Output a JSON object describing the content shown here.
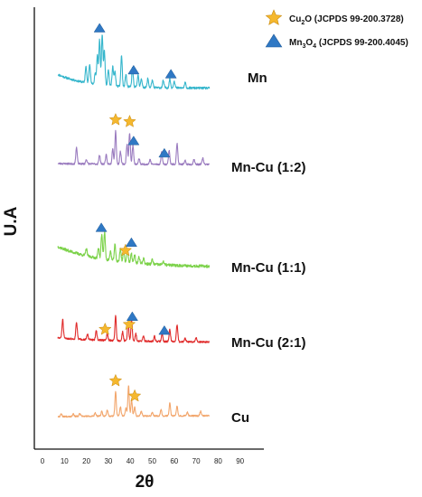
{
  "chart_data": {
    "type": "line",
    "title": "",
    "xlabel": "2θ",
    "ylabel": "U.A",
    "xlim": [
      0,
      90
    ],
    "x_ticks": [
      0,
      10,
      20,
      30,
      40,
      50,
      60,
      70,
      80,
      90
    ],
    "grid": false,
    "legend_position": "top-right",
    "legend": [
      {
        "marker": "star",
        "color": "#f5b82e",
        "formula_main": "Cu",
        "formula_sub": "2",
        "formula_end": "O",
        "ref": "(JCPDS 99-200.3728)"
      },
      {
        "marker": "triangle",
        "color": "#2f78c4",
        "formula_main": "Mn",
        "formula_sub": "3",
        "formula_end": "O",
        "formula_sub2": "4",
        "ref": "(JCPDS 99-200.4045)"
      }
    ],
    "series": [
      {
        "name": "Mn",
        "color": "#36b6cc",
        "baseline_start": 0.88,
        "baseline_end": 0.12,
        "decay": 14,
        "noise": 0.06,
        "seed": 11,
        "peaks": [
          [
            19.8,
            0.9
          ],
          [
            21.5,
            1.1
          ],
          [
            24.0,
            0.6
          ],
          [
            25.0,
            1.6
          ],
          [
            26.0,
            2.5
          ],
          [
            27.2,
            2.8
          ],
          [
            28.2,
            1.9
          ],
          [
            30.0,
            0.9
          ],
          [
            32.0,
            1.1
          ],
          [
            33.0,
            0.8
          ],
          [
            36.0,
            1.7
          ],
          [
            38.0,
            0.7
          ],
          [
            41.0,
            1.1
          ],
          [
            43.5,
            0.7
          ],
          [
            45.0,
            0.5
          ],
          [
            48.0,
            0.5
          ],
          [
            50.0,
            0.4
          ],
          [
            55.0,
            0.4
          ],
          [
            58.0,
            0.5
          ],
          [
            60.0,
            0.4
          ],
          [
            65.0,
            0.3
          ]
        ]
      },
      {
        "name": "Mn-Cu (1:2)",
        "color": "#9a7bbf",
        "baseline_start": 0.55,
        "baseline_end": 0.5,
        "decay": 30,
        "noise": 0.05,
        "seed": 23,
        "peaks": [
          [
            15.5,
            0.9
          ],
          [
            20.0,
            0.25
          ],
          [
            26.0,
            0.5
          ],
          [
            29.0,
            0.5
          ],
          [
            32.0,
            0.9
          ],
          [
            33.3,
            1.85
          ],
          [
            35.5,
            0.7
          ],
          [
            38.5,
            1.1
          ],
          [
            39.7,
            1.75
          ],
          [
            41.2,
            1.05
          ],
          [
            44.0,
            0.3
          ],
          [
            49.0,
            0.25
          ],
          [
            54.3,
            0.7
          ],
          [
            57.7,
            0.8
          ],
          [
            61.3,
            1.15
          ],
          [
            65.0,
            0.2
          ],
          [
            69.0,
            0.3
          ],
          [
            73.0,
            0.35
          ]
        ]
      },
      {
        "name": "Mn-Cu (1:1)",
        "color": "#7cd24a",
        "baseline_start": 1.35,
        "baseline_end": 0.22,
        "decay": 22,
        "noise": 0.08,
        "seed": 37,
        "peaks": [
          [
            20.0,
            0.4
          ],
          [
            25.5,
            0.6
          ],
          [
            27.0,
            1.35
          ],
          [
            28.3,
            1.5
          ],
          [
            31.0,
            0.5
          ],
          [
            33.0,
            0.9
          ],
          [
            35.5,
            0.7
          ],
          [
            37.0,
            0.6
          ],
          [
            38.7,
            0.75
          ],
          [
            40.5,
            0.5
          ],
          [
            42.0,
            0.45
          ],
          [
            44.0,
            0.35
          ],
          [
            46.0,
            0.3
          ],
          [
            50.0,
            0.25
          ],
          [
            55.0,
            0.2
          ]
        ]
      },
      {
        "name": "Mn-Cu (2:1)",
        "color": "#e02b2b",
        "baseline_start": 0.65,
        "baseline_end": 0.4,
        "decay": 30,
        "noise": 0.05,
        "seed": 51,
        "peaks": [
          [
            9.2,
            1.05
          ],
          [
            15.5,
            0.95
          ],
          [
            20.5,
            0.3
          ],
          [
            24.5,
            0.5
          ],
          [
            29.5,
            0.35
          ],
          [
            33.3,
            1.35
          ],
          [
            36.5,
            0.5
          ],
          [
            39.0,
            1.05
          ],
          [
            40.6,
            1.15
          ],
          [
            42.5,
            0.4
          ],
          [
            46.0,
            0.3
          ],
          [
            51.0,
            0.3
          ],
          [
            54.5,
            0.45
          ],
          [
            58.0,
            0.7
          ],
          [
            61.3,
            0.95
          ],
          [
            65.0,
            0.2
          ],
          [
            70.0,
            0.25
          ]
        ]
      },
      {
        "name": "Cu",
        "color": "#f2a66c",
        "baseline_start": 0.25,
        "baseline_end": 0.3,
        "decay": 30,
        "noise": 0.04,
        "seed": 67,
        "peaks": [
          [
            8.5,
            0.15
          ],
          [
            14.0,
            0.15
          ],
          [
            17.0,
            0.15
          ],
          [
            24.0,
            0.2
          ],
          [
            27.0,
            0.25
          ],
          [
            29.5,
            0.35
          ],
          [
            33.3,
            1.35
          ],
          [
            35.5,
            0.5
          ],
          [
            38.0,
            0.45
          ],
          [
            39.2,
            1.7
          ],
          [
            40.6,
            0.9
          ],
          [
            42.0,
            0.5
          ],
          [
            45.0,
            0.25
          ],
          [
            50.0,
            0.2
          ],
          [
            54.0,
            0.35
          ],
          [
            58.0,
            0.7
          ],
          [
            61.3,
            0.55
          ],
          [
            66.0,
            0.2
          ],
          [
            72.0,
            0.25
          ]
        ]
      }
    ],
    "markers": [
      {
        "series": "Mn",
        "phase": "triangle",
        "x": 26.0
      },
      {
        "series": "Mn",
        "phase": "triangle",
        "x": 41.5
      },
      {
        "series": "Mn",
        "phase": "triangle",
        "x": 58.5
      },
      {
        "series": "Mn-Cu (1:2)",
        "phase": "star",
        "x": 33.3
      },
      {
        "series": "Mn-Cu (1:2)",
        "phase": "star",
        "x": 39.7
      },
      {
        "series": "Mn-Cu (1:2)",
        "phase": "triangle",
        "x": 41.5
      },
      {
        "series": "Mn-Cu (1:2)",
        "phase": "triangle",
        "x": 55.5
      },
      {
        "series": "Mn-Cu (1:1)",
        "phase": "triangle",
        "x": 26.8
      },
      {
        "series": "Mn-Cu (1:1)",
        "phase": "star",
        "x": 37.8
      },
      {
        "series": "Mn-Cu (1:1)",
        "phase": "triangle",
        "x": 40.5
      },
      {
        "series": "Mn-Cu (2:1)",
        "phase": "star",
        "x": 28.5
      },
      {
        "series": "Mn-Cu (2:1)",
        "phase": "star",
        "x": 39.5
      },
      {
        "series": "Mn-Cu (2:1)",
        "phase": "triangle",
        "x": 40.9
      },
      {
        "series": "Mn-Cu (2:1)",
        "phase": "triangle",
        "x": 55.5
      },
      {
        "series": "Cu",
        "phase": "star",
        "x": 33.3
      },
      {
        "series": "Cu",
        "phase": "star",
        "x": 42.0
      }
    ]
  }
}
